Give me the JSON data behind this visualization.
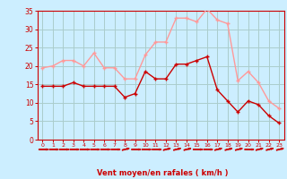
{
  "x": [
    0,
    1,
    2,
    3,
    4,
    5,
    6,
    7,
    8,
    9,
    10,
    11,
    12,
    13,
    14,
    15,
    16,
    17,
    18,
    19,
    20,
    21,
    22,
    23
  ],
  "wind_avg": [
    14.5,
    14.5,
    14.5,
    15.5,
    14.5,
    14.5,
    14.5,
    14.5,
    11.5,
    12.5,
    18.5,
    16.5,
    16.5,
    20.5,
    20.5,
    21.5,
    22.5,
    13.5,
    10.5,
    7.5,
    10.5,
    9.5,
    6.5,
    4.5
  ],
  "wind_gust": [
    19.5,
    20.0,
    21.5,
    21.5,
    20.0,
    23.5,
    19.5,
    19.5,
    16.5,
    16.5,
    23.0,
    26.5,
    26.5,
    33.0,
    33.0,
    32.0,
    35.5,
    32.5,
    31.5,
    16.0,
    18.5,
    15.5,
    10.5,
    8.5
  ],
  "wind_dirs": [
    0,
    0,
    0,
    0,
    0,
    0,
    0,
    0,
    45,
    0,
    0,
    0,
    45,
    45,
    45,
    0,
    0,
    45,
    45,
    45,
    0,
    45,
    45,
    45
  ],
  "ylim": [
    0,
    35
  ],
  "yticks": [
    0,
    5,
    10,
    15,
    20,
    25,
    30,
    35
  ],
  "xlabel": "Vent moyen/en rafales ( km/h )",
  "bg_color": "#cceeff",
  "grid_color": "#aacccc",
  "line_avg_color": "#cc0000",
  "line_gust_color": "#ff9999",
  "axis_color": "#cc0000",
  "tick_color": "#cc0000",
  "label_color": "#cc0000"
}
